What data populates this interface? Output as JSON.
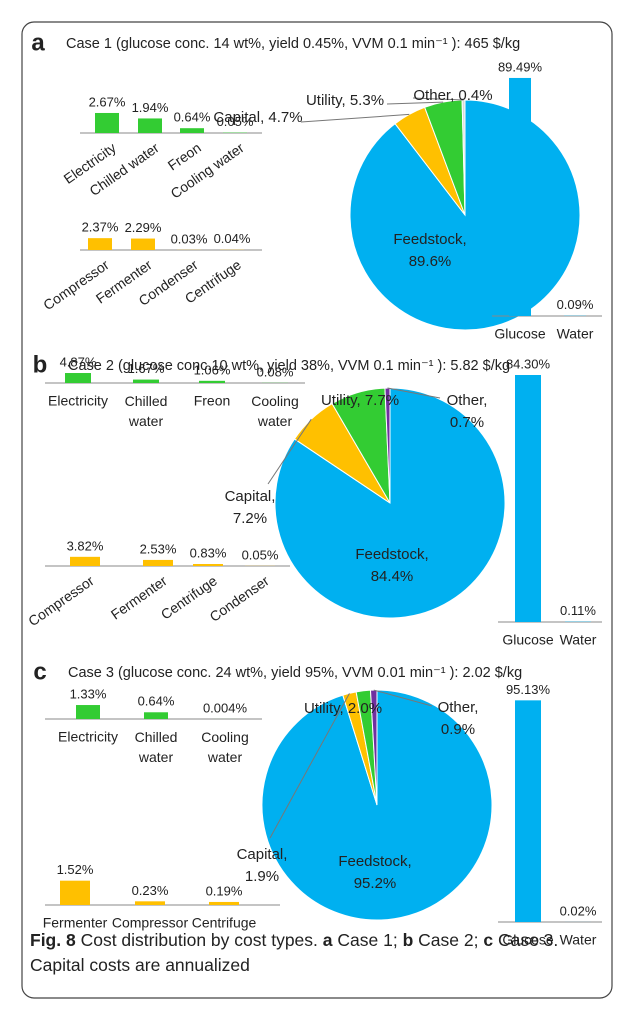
{
  "chart_data": [
    {
      "type": "pie",
      "panel": "a",
      "title": "Case 1 (glucose conc. 14 wt%, yield 0.45%, VVM 0.1 min⁻¹ ): 465 $/kg",
      "values": [
        89.6,
        4.7,
        5.3,
        0.4
      ],
      "value_labels": [
        "Feedstock, 89.6%",
        "Capital, 4.7%",
        "Utility, 5.3%",
        "Other, 0.4%"
      ],
      "colors": [
        "#00b0f0",
        "#ffc000",
        "#33cc33",
        "#d9d9d9"
      ]
    },
    {
      "type": "bar",
      "categories": [
        "Electricity",
        "Chilled water",
        "Freon",
        "Cooling water"
      ],
      "values": [
        2.67,
        1.94,
        0.64,
        0.05
      ],
      "value_labels": [
        "2.67%",
        "1.94%",
        "0.64%",
        "0.05%"
      ],
      "color": "#33cc33"
    },
    {
      "type": "bar",
      "categories": [
        "Compressor",
        "Fermenter",
        "Condenser",
        "Centrifuge"
      ],
      "values": [
        2.37,
        2.29,
        0.03,
        0.04
      ],
      "value_labels": [
        "2.37%",
        "2.29%",
        "0.03%",
        "0.04%"
      ],
      "color": "#ffc000"
    },
    {
      "type": "bar",
      "categories": [
        "Glucose",
        "Water"
      ],
      "values": [
        89.49,
        0.09
      ],
      "value_labels": [
        "89.49%",
        "0.09%"
      ],
      "color": "#00b0f0"
    },
    {
      "type": "pie",
      "panel": "b",
      "title": "Case 2 (glucose conc.10 wt%, yield 38%, VVM 0.1 min⁻¹ ): 5.82 $/kg",
      "values": [
        84.4,
        7.2,
        7.7,
        0.7
      ],
      "value_labels": [
        "Feedstock, 84.4%",
        "Capital, 7.2%",
        "Utility, 7.7%",
        "Other, 0.7%"
      ],
      "colors": [
        "#00b0f0",
        "#ffc000",
        "#33cc33",
        "#7030a0"
      ]
    },
    {
      "type": "bar",
      "categories": [
        "Electricity",
        "Chilled water",
        "Freon",
        "Cooling water"
      ],
      "values": [
        4.87,
        1.67,
        1.06,
        0.08
      ],
      "value_labels": [
        "4.87%",
        "1.67%",
        "1.06%",
        "0.08%"
      ],
      "color": "#33cc33"
    },
    {
      "type": "bar",
      "categories": [
        "Compressor",
        "Fermenter",
        "Centrifuge",
        "Condenser"
      ],
      "values": [
        3.82,
        2.53,
        0.83,
        0.05
      ],
      "value_labels": [
        "3.82%",
        "2.53%",
        "0.83%",
        "0.05%"
      ],
      "color": "#ffc000"
    },
    {
      "type": "bar",
      "categories": [
        "Glucose",
        "Water"
      ],
      "values": [
        84.3,
        0.11
      ],
      "value_labels": [
        "84.30%",
        "0.11%"
      ],
      "color": "#00b0f0"
    },
    {
      "type": "pie",
      "panel": "c",
      "title": "Case 3 (glucose conc. 24 wt%, yield 95%, VVM 0.01 min⁻¹ ): 2.02 $/kg",
      "values": [
        95.2,
        1.9,
        2.0,
        0.9
      ],
      "value_labels": [
        "Feedstock, 95.2%",
        "Capital, 1.9%",
        "Utility, 2.0%",
        "Other, 0.9%"
      ],
      "colors": [
        "#00b0f0",
        "#ffc000",
        "#33cc33",
        "#7030a0"
      ]
    },
    {
      "type": "bar",
      "categories": [
        "Electricity",
        "Chilled water",
        "Cooling water"
      ],
      "values": [
        1.33,
        0.64,
        0.004
      ],
      "value_labels": [
        "1.33%",
        "0.64%",
        "0.004%"
      ],
      "color": "#33cc33"
    },
    {
      "type": "bar",
      "categories": [
        "Fermenter",
        "Compressor",
        "Centrifuge"
      ],
      "values": [
        1.52,
        0.23,
        0.19
      ],
      "value_labels": [
        "1.52%",
        "0.23%",
        "0.19%"
      ],
      "color": "#ffc000"
    },
    {
      "type": "bar",
      "categories": [
        "Glucose",
        "Water"
      ],
      "values": [
        95.13,
        0.02
      ],
      "value_labels": [
        "95.13%",
        "0.02%"
      ],
      "color": "#00b0f0"
    }
  ],
  "caption": {
    "label": "Fig. 8",
    "text": "Cost distribution by cost types.",
    "items": [
      {
        "key": "a",
        "text": "Case 1;"
      },
      {
        "key": "b",
        "text": "Case 2;"
      },
      {
        "key": "c",
        "text": "Case 3."
      }
    ],
    "note": "Capital costs are annualized"
  }
}
